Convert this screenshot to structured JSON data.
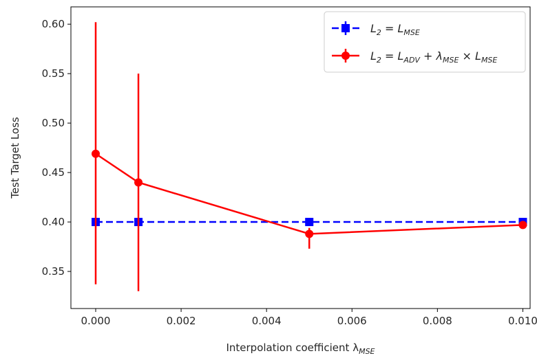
{
  "chart_data": {
    "type": "line",
    "xlabel": "Interpolation coefficient λ",
    "xlabel_sub": "MSE",
    "ylabel": "Test Target Loss",
    "xlim": [
      -0.00058,
      0.01017
    ],
    "ylim": [
      0.3125,
      0.6175
    ],
    "xticks": [
      0.0,
      0.002,
      0.004,
      0.006,
      0.008,
      0.01
    ],
    "xtick_labels": [
      "0.000",
      "0.002",
      "0.004",
      "0.006",
      "0.008",
      "0.010"
    ],
    "yticks": [
      0.35,
      0.4,
      0.45,
      0.5,
      0.55,
      0.6
    ],
    "ytick_labels": [
      "0.35",
      "0.40",
      "0.45",
      "0.50",
      "0.55",
      "0.60"
    ],
    "grid": false,
    "legend_position": "top-right",
    "series": [
      {
        "color": "#0000ff",
        "linestyle": "dashed",
        "marker": "square",
        "legend": [
          {
            "t": "L",
            "s": "2"
          },
          {
            "t": " = L",
            "s": "MSE"
          }
        ],
        "x": [
          0.0,
          0.001,
          0.005,
          0.01
        ],
        "y": [
          0.4,
          0.4,
          0.4,
          0.4
        ],
        "err_low": [
          0.4,
          0.4,
          0.4,
          0.4
        ],
        "err_high": [
          0.4,
          0.4,
          0.4,
          0.4
        ]
      },
      {
        "color": "#ff0000",
        "linestyle": "solid",
        "marker": "circle",
        "legend": [
          {
            "t": "L",
            "s": "2"
          },
          {
            "t": " = L",
            "s": "ADV"
          },
          {
            "t": " + λ",
            "s": "MSE"
          },
          {
            "t": " × L",
            "s": "MSE"
          }
        ],
        "x": [
          0.0,
          0.001,
          0.005,
          0.01
        ],
        "y": [
          0.469,
          0.44,
          0.388,
          0.397
        ],
        "err_low": [
          0.337,
          0.33,
          0.373,
          0.397
        ],
        "err_high": [
          0.602,
          0.55,
          0.394,
          0.397
        ]
      }
    ]
  }
}
